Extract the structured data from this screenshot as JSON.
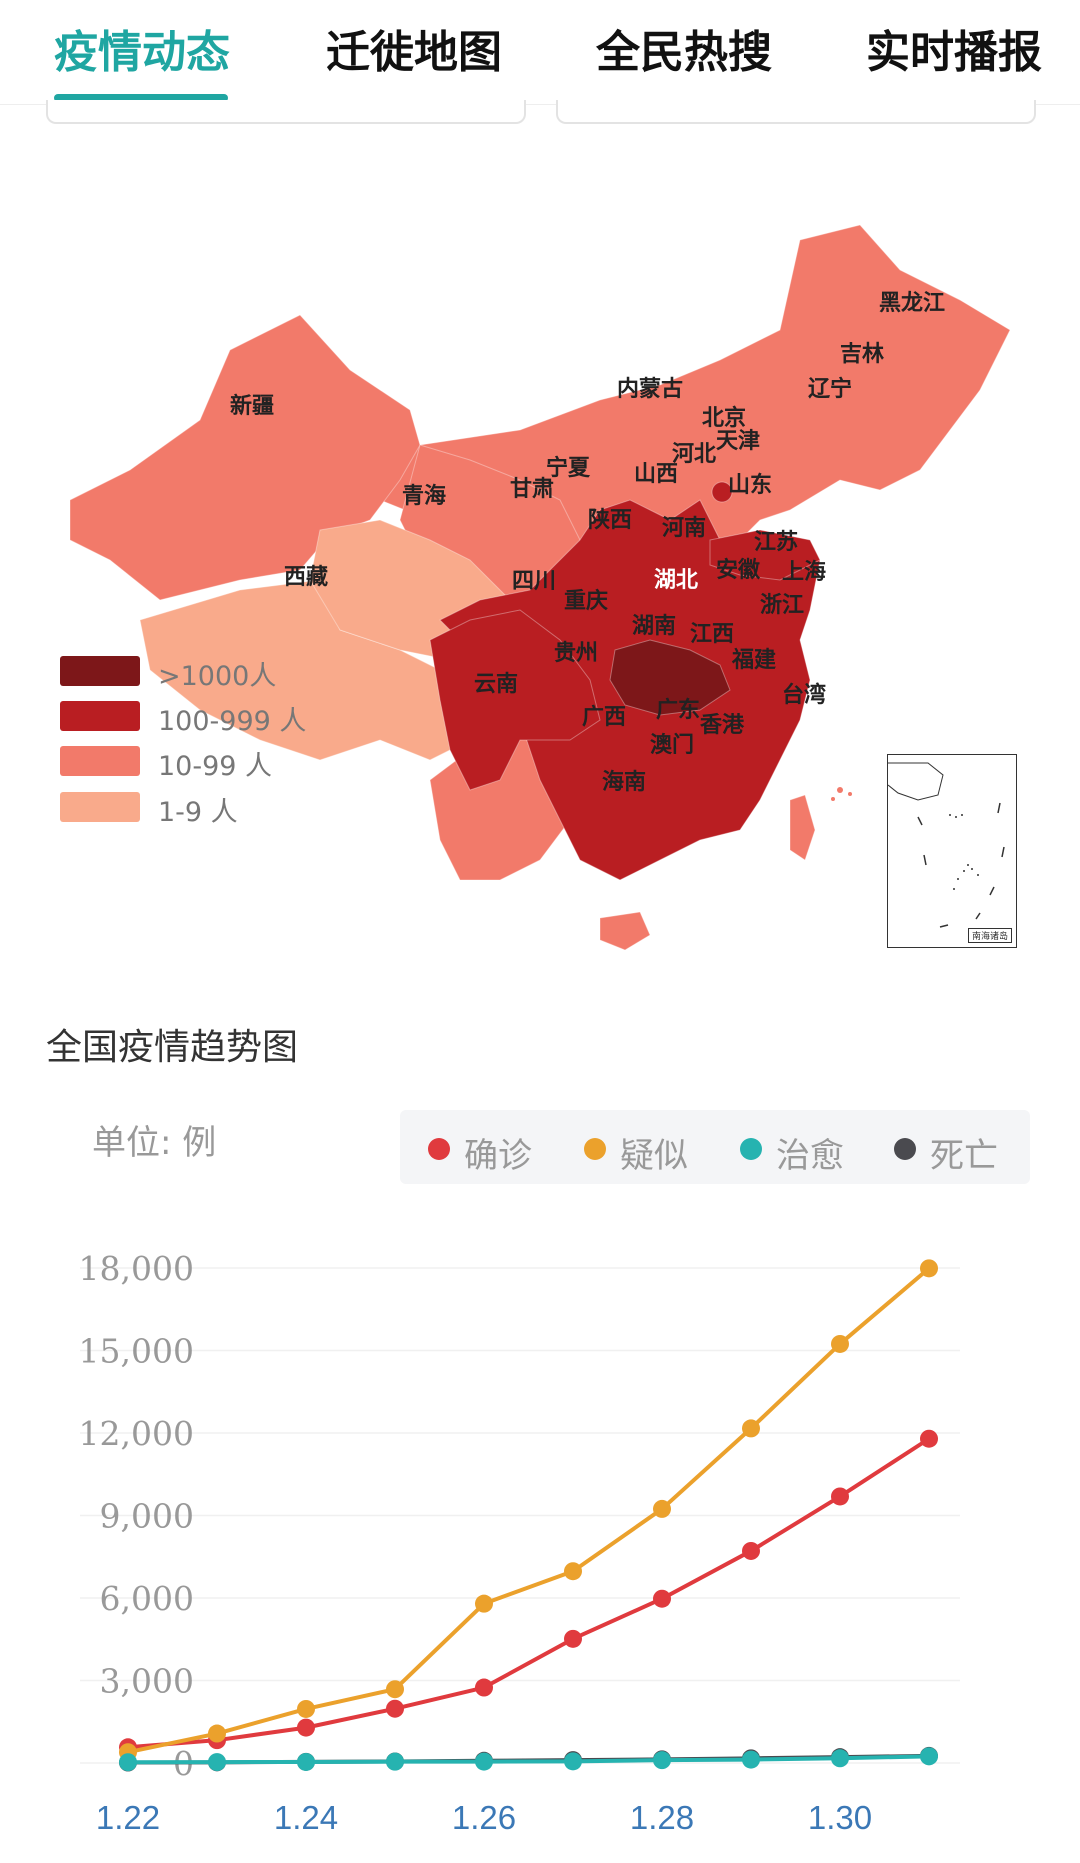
{
  "tabs": [
    {
      "label": "疫情动态",
      "active": true
    },
    {
      "label": "迁徙地图",
      "active": false
    },
    {
      "label": "全民热搜",
      "active": false
    },
    {
      "label": "实时播报",
      "active": false
    }
  ],
  "colors": {
    "accent": "#1fa6a2",
    "level_1000_plus": "#7d1719",
    "level_100_999": "#b91e22",
    "level_10_99": "#f27a6a",
    "level_1_9": "#f9aa8b",
    "confirmed": "#e03a3e",
    "suspected": "#eba12c",
    "cured": "#26b3b0",
    "dead": "#4a4a4f"
  },
  "map": {
    "legend": [
      {
        "label": ">1000人",
        "color": "#7d1719"
      },
      {
        "label": "100-999 人",
        "color": "#b91e22"
      },
      {
        "label": "10-99 人",
        "color": "#f27a6a"
      },
      {
        "label": "1-9 人",
        "color": "#f9aa8b"
      }
    ],
    "provinces": [
      {
        "name": "黑龙江",
        "level": "10-99"
      },
      {
        "name": "吉林",
        "level": "10-99"
      },
      {
        "name": "辽宁",
        "level": "10-99"
      },
      {
        "name": "内蒙古",
        "level": "10-99"
      },
      {
        "name": "北京",
        "level": "100-999"
      },
      {
        "name": "天津",
        "level": "10-99"
      },
      {
        "name": "河北",
        "level": "10-99"
      },
      {
        "name": "新疆",
        "level": "10-99"
      },
      {
        "name": "宁夏",
        "level": "10-99"
      },
      {
        "name": "山西",
        "level": "10-99"
      },
      {
        "name": "山东",
        "level": "100-999"
      },
      {
        "name": "甘肃",
        "level": "10-99"
      },
      {
        "name": "青海",
        "level": "1-9"
      },
      {
        "name": "陕西",
        "level": "100-999"
      },
      {
        "name": "河南",
        "level": "100-999"
      },
      {
        "name": "江苏",
        "level": "100-999"
      },
      {
        "name": "西藏",
        "level": "1-9"
      },
      {
        "name": "四川",
        "level": "100-999"
      },
      {
        "name": "湖北",
        "level": ">1000"
      },
      {
        "name": "安徽",
        "level": "100-999"
      },
      {
        "name": "上海",
        "level": "100-999"
      },
      {
        "name": "重庆",
        "level": "100-999"
      },
      {
        "name": "浙江",
        "level": "100-999"
      },
      {
        "name": "湖南",
        "level": "100-999"
      },
      {
        "name": "江西",
        "level": "100-999"
      },
      {
        "name": "贵州",
        "level": "10-99"
      },
      {
        "name": "福建",
        "level": "100-999"
      },
      {
        "name": "云南",
        "level": "10-99"
      },
      {
        "name": "台湾",
        "level": "10-99"
      },
      {
        "name": "广西",
        "level": "100-999"
      },
      {
        "name": "广东",
        "level": "100-999"
      },
      {
        "name": "香港",
        "level": "10-99"
      },
      {
        "name": "澳门",
        "level": "1-9"
      },
      {
        "name": "海南",
        "level": "10-99"
      }
    ],
    "inset_label": "南海诸岛"
  },
  "chart_section": {
    "title": "全国疫情趋势图",
    "unit": "单位: 例"
  },
  "chart_data": {
    "type": "line",
    "x": [
      "1.22",
      "1.23",
      "1.24",
      "1.25",
      "1.26",
      "1.27",
      "1.28",
      "1.29",
      "1.30",
      "1.31"
    ],
    "x_tick_labels": [
      "1.22",
      "1.24",
      "1.26",
      "1.28",
      "1.30"
    ],
    "y_ticks": [
      0,
      3000,
      6000,
      9000,
      12000,
      15000,
      18000
    ],
    "y_tick_labels": [
      "0",
      "3,000",
      "6,000",
      "9,000",
      "12,000",
      "15,000",
      "18,000"
    ],
    "ylim": [
      0,
      18000
    ],
    "grid": true,
    "legend_position": "top-right",
    "series": [
      {
        "name": "确诊",
        "color": "#e03a3e",
        "values": [
          571,
          830,
          1287,
          1975,
          2744,
          4515,
          5974,
          7711,
          9692,
          11791
        ]
      },
      {
        "name": "疑似",
        "color": "#eba12c",
        "values": [
          393,
          1072,
          1965,
          2684,
          5794,
          6973,
          9239,
          12167,
          15238,
          17988
        ]
      },
      {
        "name": "治愈",
        "color": "#26b3b0",
        "values": [
          28,
          34,
          38,
          49,
          51,
          60,
          103,
          124,
          171,
          243
        ]
      },
      {
        "name": "死亡",
        "color": "#4a4a4f",
        "values": [
          17,
          25,
          41,
          56,
          80,
          106,
          132,
          170,
          213,
          259
        ]
      }
    ]
  }
}
